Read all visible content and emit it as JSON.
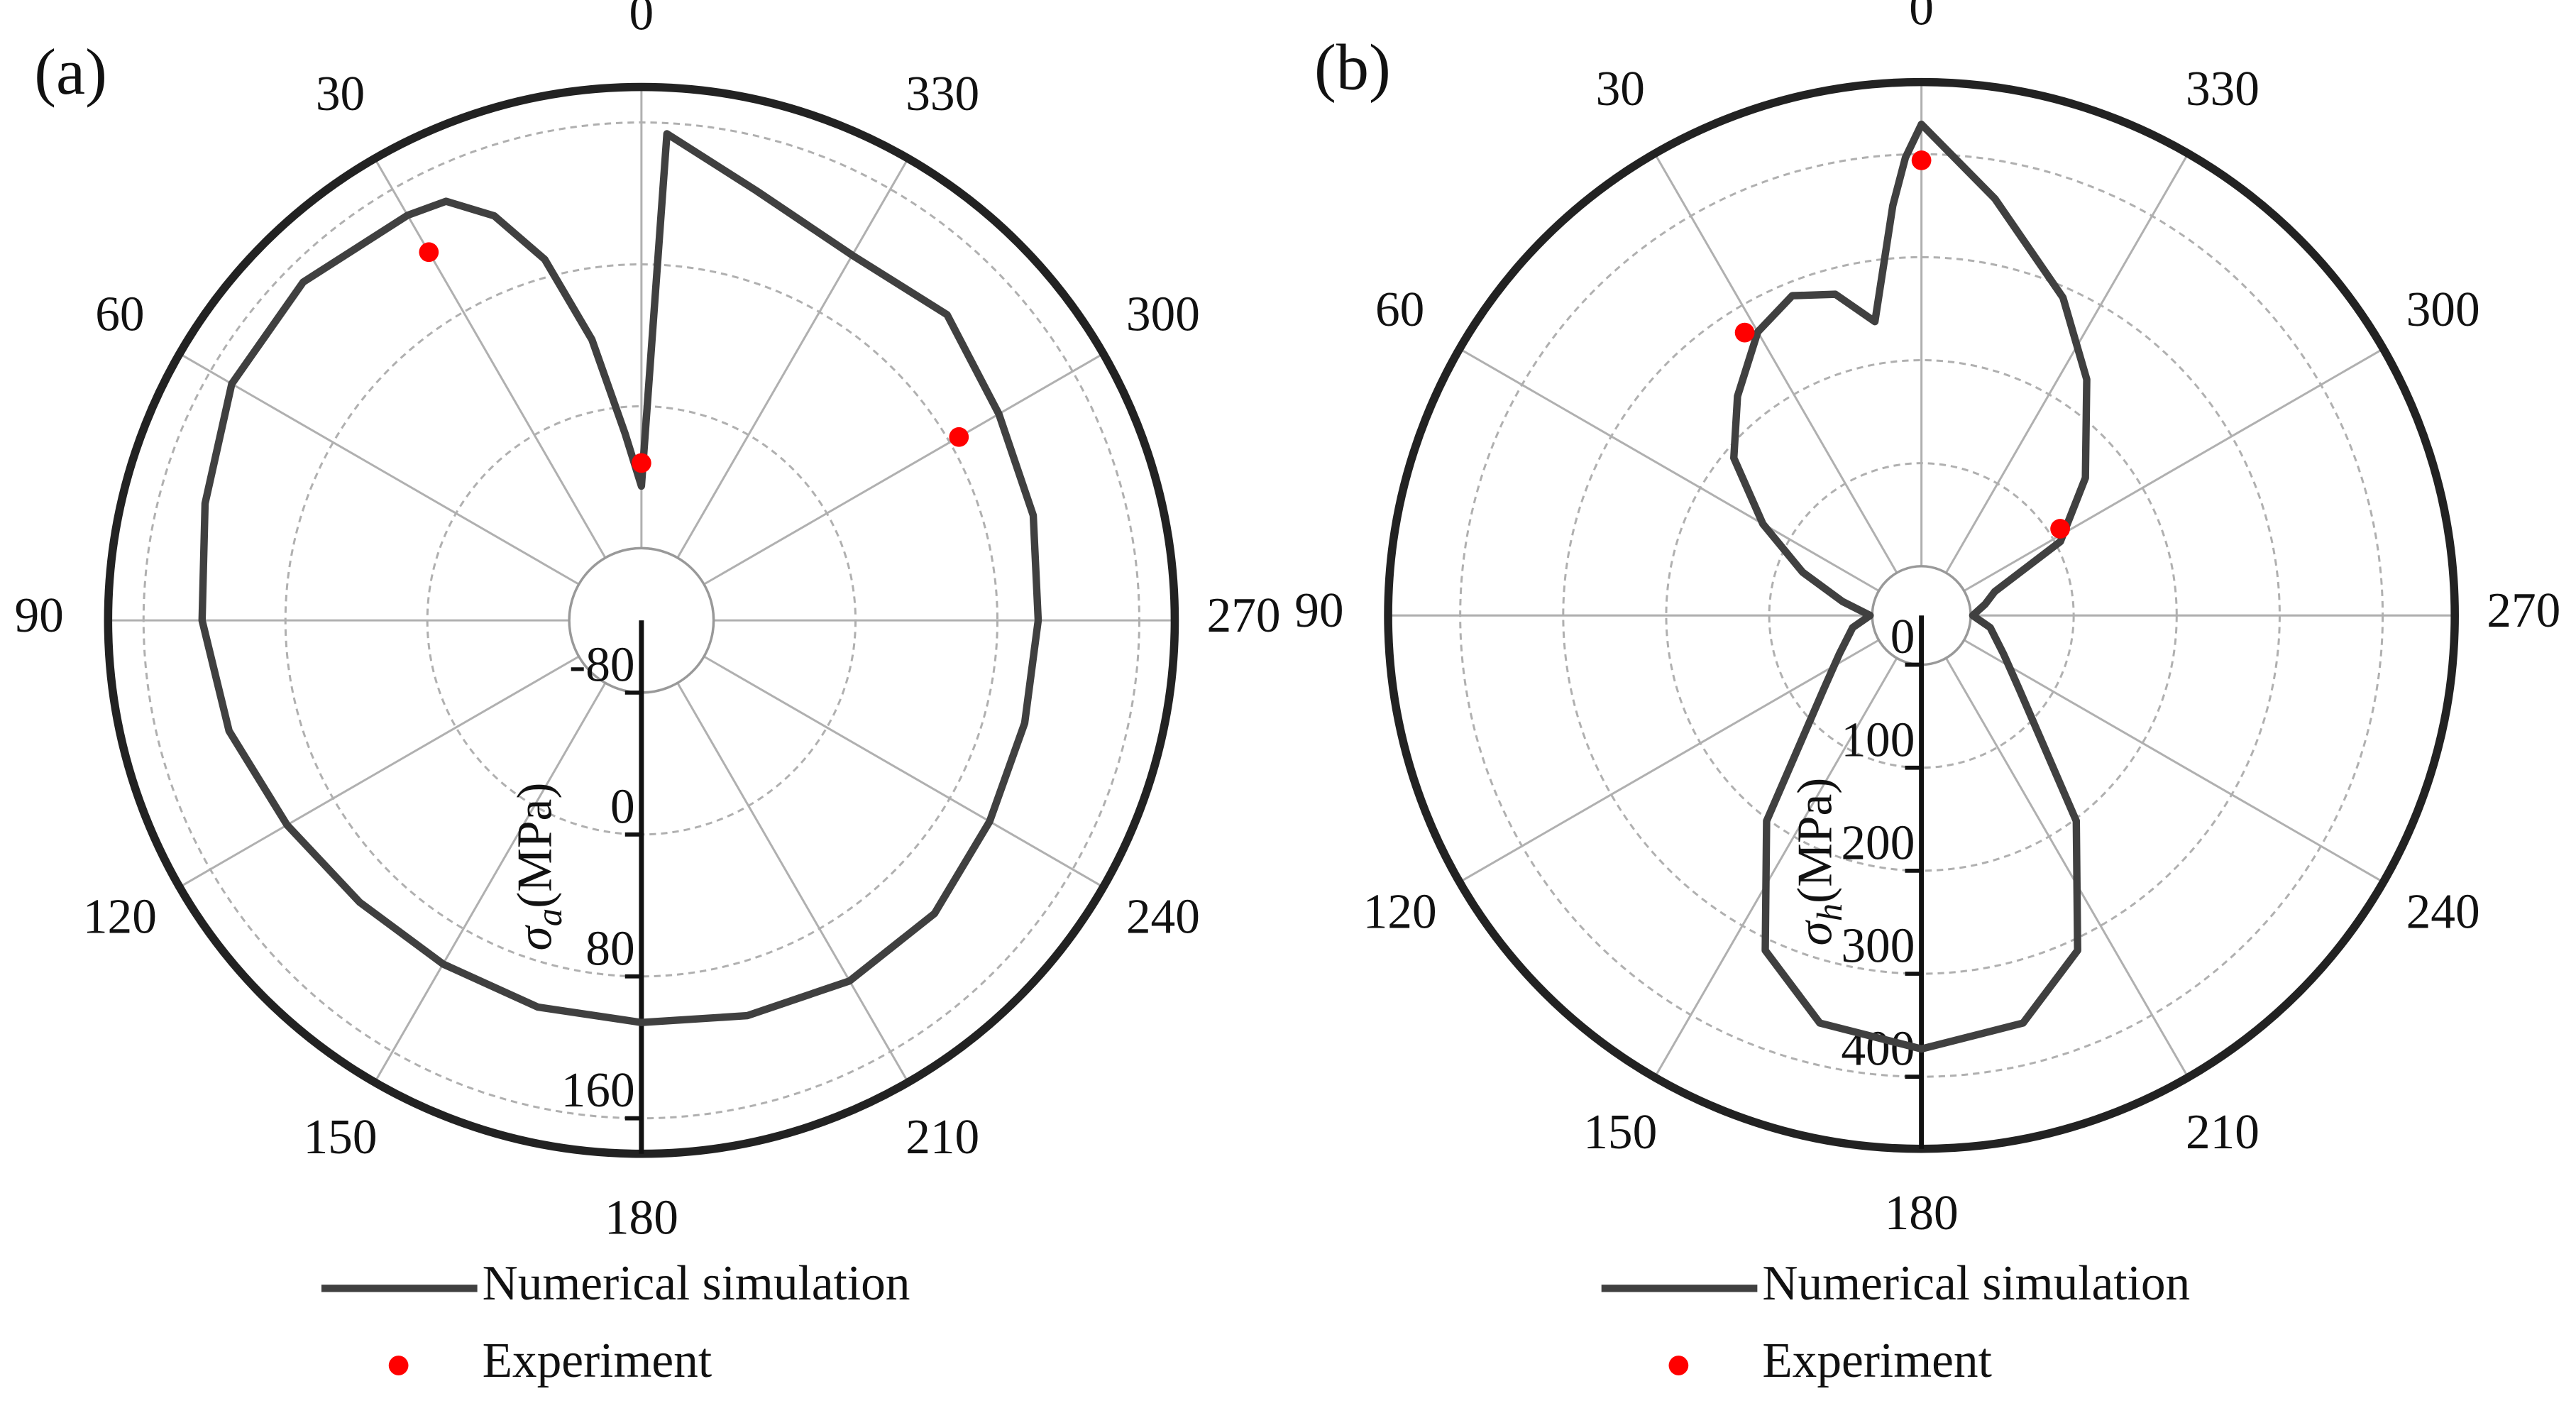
{
  "chart_data": [
    {
      "type": "polar",
      "panel_label": "(a)",
      "radial_label": {
        "symbol": "σ",
        "subscript": "a",
        "unit": "(MPa)"
      },
      "rlim": [
        -80,
        180
      ],
      "rticks": [
        -80,
        0,
        80,
        160
      ],
      "xticks": [
        0,
        30,
        60,
        90,
        120,
        150,
        180,
        210,
        240,
        270,
        300,
        330
      ],
      "direction": "counterclockwise",
      "zero": "top",
      "grid": true,
      "series": [
        {
          "name": "Numerical simulation",
          "style": "line",
          "color": "#404040",
          "x": [
            0,
            5,
            10,
            15,
            20,
            25,
            30,
            45,
            60,
            75,
            90,
            105,
            120,
            135,
            150,
            165,
            180,
            195,
            210,
            225,
            240,
            255,
            270,
            285,
            300,
            315,
            330,
            345,
            357
          ],
          "values": [
            -45,
            -15,
            40,
            90,
            122,
            140,
            143,
            149,
            146,
            134,
            127,
            120,
            110,
            104,
            103,
            105,
            106,
            110,
            114,
            113,
            106,
            103,
            103,
            108,
            112,
            123,
            117,
            130,
            154
          ]
        },
        {
          "name": "Experiment",
          "style": "points",
          "color": "#ff0000",
          "x": [
            0,
            30,
            300
          ],
          "values": [
            -32,
            119,
            86
          ]
        }
      ]
    },
    {
      "type": "polar",
      "panel_label": "(b)",
      "radial_label": {
        "symbol": "σ",
        "subscript": "h",
        "unit": "(MPa)"
      },
      "rlim": [
        0,
        470
      ],
      "rticks": [
        0,
        100,
        200,
        300,
        400
      ],
      "xticks": [
        0,
        30,
        60,
        90,
        120,
        150,
        180,
        210,
        240,
        270,
        300,
        330
      ],
      "direction": "counterclockwise",
      "zero": "top",
      "grid": true,
      "series": [
        {
          "name": "Numerical simulation",
          "style": "line",
          "color": "#404040",
          "x": [
            0,
            2,
            4,
            9,
            15,
            22,
            30,
            40,
            50,
            60,
            70,
            80,
            90,
            100,
            115,
            127,
            143,
            155,
            166,
            180,
            194,
            205,
            217,
            233,
            245,
            260,
            270,
            280,
            288,
            298,
            310,
            325,
            336,
            350
          ],
          "values": [
            429,
            397,
            351,
            241,
            275,
            287,
            270,
            230,
            190,
            130,
            75,
            30,
            2,
            20,
            40,
            71,
            202,
            311,
            360,
            373,
            360,
            311,
            202,
            71,
            40,
            20,
            2,
            15,
            27,
            105,
            160,
            232,
            290,
            363
          ]
        },
        {
          "name": "Experiment",
          "style": "points",
          "color": "#ff0000",
          "x": [
            0,
            32,
            302
          ],
          "values": [
            394,
            276,
            111
          ]
        }
      ]
    }
  ]
}
